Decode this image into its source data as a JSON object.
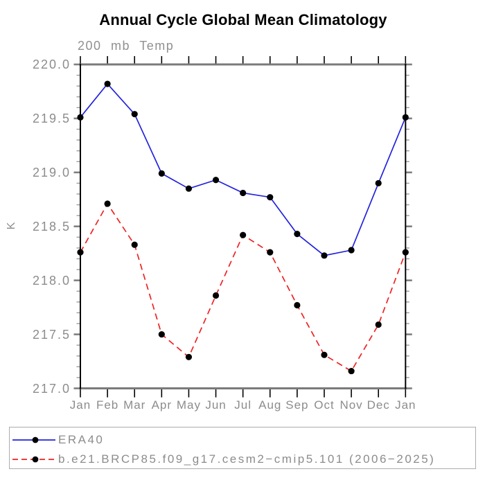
{
  "header": {
    "title": "Annual Cycle Global Mean Climatology",
    "subtitle": "200 mb Temp"
  },
  "colors": {
    "era40_line": "#2222dd",
    "model_line": "#ee2222",
    "marker": "#000000",
    "x_border_gray": "#7a7a7a",
    "y_border_black": "#000000",
    "x_tick_black": "#000000",
    "y_major_tick_gray": "#7f7f7f",
    "y_minor_tick_gray": "#9a9a9a",
    "label_gray": "#8c8c8c",
    "title_black": "#000000",
    "legend_border_gray": "#ababab"
  },
  "chart_data": {
    "type": "line",
    "title": "Annual Cycle Global Mean Climatology",
    "subtitle": "200 mb Temp",
    "xlabel": "",
    "ylabel": "K",
    "categories": [
      "Jan",
      "Feb",
      "Mar",
      "Apr",
      "May",
      "Jun",
      "Jul",
      "Aug",
      "Sep",
      "Oct",
      "Nov",
      "Dec",
      "Jan"
    ],
    "series": [
      {
        "name": "ERA40",
        "color": "#2222dd",
        "line_style": "solid",
        "marker": "black-dot",
        "values": [
          219.51,
          219.82,
          219.54,
          218.99,
          218.85,
          218.93,
          218.81,
          218.77,
          218.43,
          218.23,
          218.28,
          218.9,
          219.51
        ]
      },
      {
        "name": "b.e21.BRCP85.f09_g17.cesm2−cmip5.101 (2006−2025)",
        "color": "#ee2222",
        "line_style": "dashed",
        "marker": "black-dot",
        "values": [
          218.26,
          218.71,
          218.33,
          217.5,
          217.29,
          217.86,
          218.42,
          218.26,
          217.77,
          217.31,
          217.16,
          217.59,
          218.26
        ]
      }
    ],
    "ylim": [
      217.0,
      220.0
    ],
    "ytick_labels": [
      "217.0",
      "217.5",
      "218.0",
      "218.5",
      "219.0",
      "219.5",
      "220.0"
    ],
    "ytick_minor_step": 0.1,
    "grid": false,
    "legend_position": "bottom-left-box"
  }
}
